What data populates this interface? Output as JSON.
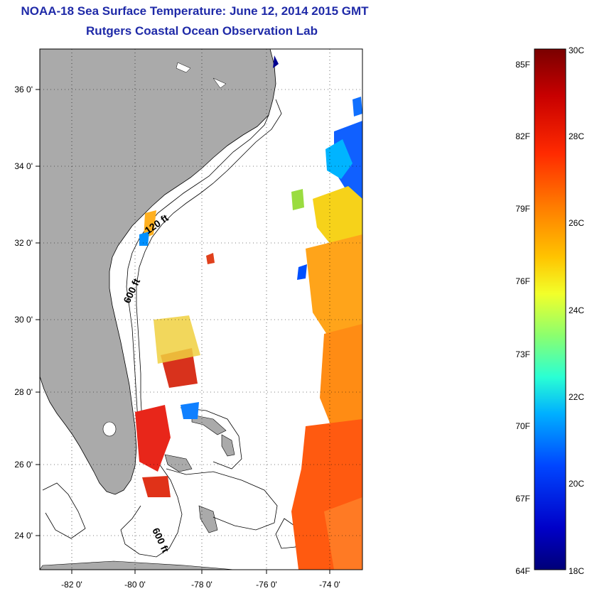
{
  "title": "NOAA-18 Sea Surface Temperature:  June 12, 2014 2015 GMT",
  "subtitle": "Rutgers Coastal Ocean Observation Lab",
  "lat_labels": [
    "36 0'",
    "34 0'",
    "32 0'",
    "30 0'",
    "28 0'",
    "26 0'",
    "24 0'"
  ],
  "lon_labels": [
    "-82 0'",
    "-80 0'",
    "-78 0'",
    "-76 0'",
    "-74 0'"
  ],
  "contour_labels": [
    "120 ft",
    "600 ft",
    "600 ft"
  ],
  "colorbar": {
    "f_labels": [
      "85F",
      "82F",
      "79F",
      "76F",
      "73F",
      "70F",
      "67F",
      "64F"
    ],
    "c_labels": [
      "30C",
      "28C",
      "26C",
      "24C",
      "22C",
      "20C",
      "18C"
    ],
    "colors": [
      "#7a0000",
      "#c80000",
      "#ff2a00",
      "#ff7a00",
      "#ffc400",
      "#f2ff2a",
      "#8cff6e",
      "#2affd4",
      "#00b0ff",
      "#0046ff",
      "#0000c8",
      "#000078"
    ]
  },
  "colors": {
    "land": "#aaaaaa",
    "title": "#1f2aa8"
  }
}
